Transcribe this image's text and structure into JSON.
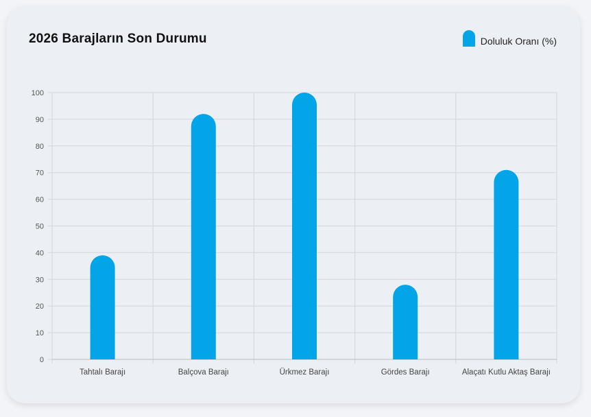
{
  "card": {
    "title": "2026 Barajların Son Durumu"
  },
  "legend": {
    "label": "Doluluk Oranı (%)",
    "color": "#03a4e8"
  },
  "chart_data": {
    "type": "bar",
    "title": "2026 Barajların Son Durumu",
    "categories": [
      "Tahtalı Barajı",
      "Balçova Barajı",
      "Ürkmez Barajı",
      "Gördes Barajı",
      "Alaçatı Kutlu Aktaş Barajı"
    ],
    "series": [
      {
        "name": "Doluluk Oranı (%)",
        "values": [
          39,
          92,
          100,
          28,
          71
        ],
        "color": "#03a4e8"
      }
    ],
    "ylim": [
      0,
      100
    ],
    "yticks": [
      0,
      10,
      20,
      30,
      40,
      50,
      60,
      70,
      80,
      90,
      100
    ],
    "grid": true,
    "legend_position": "top-right"
  }
}
